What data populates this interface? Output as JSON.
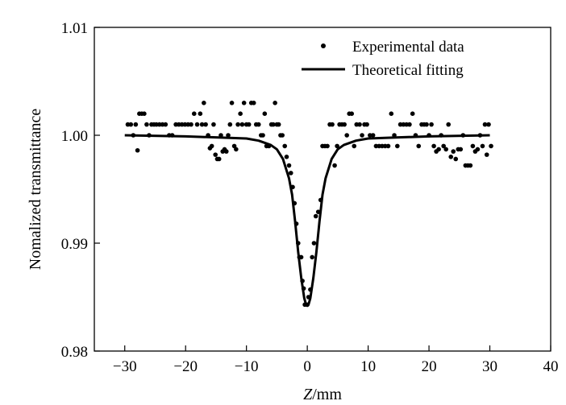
{
  "chart_data": {
    "type": "scatter",
    "xlabel_italic": "Z",
    "xlabel_unit": "/mm",
    "ylabel": "Nomalized transmittance",
    "xlim": [
      -35,
      40
    ],
    "ylim": [
      0.98,
      1.01
    ],
    "x_ticks": [
      -30,
      -20,
      -10,
      0,
      10,
      20,
      30,
      40
    ],
    "x_tick_labels": [
      "−30",
      "−20",
      "−10",
      "0",
      "10",
      "20",
      "30",
      "40"
    ],
    "y_ticks": [
      0.98,
      0.99,
      1.0,
      1.01
    ],
    "y_tick_labels": [
      "0.98",
      "0.99",
      "1.00",
      "1.01"
    ],
    "grid": false,
    "legend_position": "top-right",
    "series": [
      {
        "name": "Experimental data",
        "marker": "dot",
        "color": "#000000",
        "points": [
          [
            -29.5,
            1.001
          ],
          [
            -29.0,
            1.001
          ],
          [
            -28.6,
            1.0
          ],
          [
            -28.2,
            1.001
          ],
          [
            -27.9,
            0.9986
          ],
          [
            -27.6,
            1.002
          ],
          [
            -27.2,
            1.002
          ],
          [
            -26.8,
            1.002
          ],
          [
            -26.4,
            1.001
          ],
          [
            -26.0,
            1.0
          ],
          [
            -25.6,
            1.001
          ],
          [
            -25.2,
            1.001
          ],
          [
            -24.8,
            1.001
          ],
          [
            -24.3,
            1.001
          ],
          [
            -23.8,
            1.001
          ],
          [
            -23.3,
            1.001
          ],
          [
            -22.7,
            1.0
          ],
          [
            -22.2,
            1.0
          ],
          [
            -21.6,
            1.001
          ],
          [
            -21.1,
            1.001
          ],
          [
            -20.6,
            1.001
          ],
          [
            -20.1,
            1.001
          ],
          [
            -19.6,
            1.001
          ],
          [
            -19.1,
            1.001
          ],
          [
            -18.6,
            1.002
          ],
          [
            -18.1,
            1.001
          ],
          [
            -17.6,
            1.002
          ],
          [
            -17.3,
            1.001
          ],
          [
            -17.0,
            1.003
          ],
          [
            -16.7,
            1.001
          ],
          [
            -16.3,
            1.0
          ],
          [
            -16.0,
            0.9988
          ],
          [
            -15.7,
            0.999
          ],
          [
            -15.4,
            1.001
          ],
          [
            -15.1,
            0.9982
          ],
          [
            -14.8,
            0.9978
          ],
          [
            -14.5,
            0.9978
          ],
          [
            -14.2,
            1.0
          ],
          [
            -13.9,
            0.9985
          ],
          [
            -13.6,
            0.9987
          ],
          [
            -13.3,
            0.9985
          ],
          [
            -13.0,
            1.0
          ],
          [
            -12.7,
            1.001
          ],
          [
            -12.4,
            1.003
          ],
          [
            -12.0,
            0.999
          ],
          [
            -11.7,
            0.9987
          ],
          [
            -11.4,
            1.001
          ],
          [
            -11.0,
            1.002
          ],
          [
            -10.7,
            1.001
          ],
          [
            -10.4,
            1.003
          ],
          [
            -10.0,
            1.001
          ],
          [
            -9.6,
            1.001
          ],
          [
            -9.2,
            1.003
          ],
          [
            -8.8,
            1.003
          ],
          [
            -8.4,
            1.001
          ],
          [
            -8.0,
            1.001
          ],
          [
            -7.6,
            1.0
          ],
          [
            -7.3,
            1.0
          ],
          [
            -7.0,
            1.002
          ],
          [
            -6.7,
            0.999
          ],
          [
            -6.3,
            0.999
          ],
          [
            -5.9,
            1.001
          ],
          [
            -5.6,
            1.001
          ],
          [
            -5.3,
            1.003
          ],
          [
            -5.0,
            1.001
          ],
          [
            -4.7,
            1.001
          ],
          [
            -4.4,
            1.0
          ],
          [
            -4.1,
            1.0
          ],
          [
            -3.7,
            0.999
          ],
          [
            -3.4,
            0.998
          ],
          [
            -3.0,
            0.9972
          ],
          [
            -2.7,
            0.9965
          ],
          [
            -2.4,
            0.9952
          ],
          [
            -2.1,
            0.9937
          ],
          [
            -1.8,
            0.9918
          ],
          [
            -1.5,
            0.99
          ],
          [
            -1.3,
            0.9887
          ],
          [
            -1.0,
            0.9887
          ],
          [
            -0.8,
            0.9865
          ],
          [
            -0.6,
            0.9858
          ],
          [
            -0.4,
            0.9843
          ],
          [
            0.0,
            0.9843
          ],
          [
            0.2,
            0.985
          ],
          [
            0.5,
            0.9857
          ],
          [
            0.8,
            0.9887
          ],
          [
            1.1,
            0.99
          ],
          [
            1.4,
            0.9925
          ],
          [
            1.8,
            0.9929
          ],
          [
            2.2,
            0.994
          ],
          [
            2.5,
            0.999
          ],
          [
            2.9,
            0.999
          ],
          [
            3.3,
            0.999
          ],
          [
            3.7,
            1.001
          ],
          [
            4.1,
            1.001
          ],
          [
            4.5,
            0.9972
          ],
          [
            4.9,
            0.999
          ],
          [
            5.3,
            1.001
          ],
          [
            5.7,
            1.001
          ],
          [
            6.1,
            1.001
          ],
          [
            6.5,
            1.0
          ],
          [
            6.9,
            1.002
          ],
          [
            7.3,
            1.002
          ],
          [
            7.7,
            0.999
          ],
          [
            8.1,
            1.001
          ],
          [
            8.6,
            1.001
          ],
          [
            9.0,
            1.0
          ],
          [
            9.4,
            1.001
          ],
          [
            9.8,
            1.001
          ],
          [
            10.3,
            1.0
          ],
          [
            10.8,
            1.0
          ],
          [
            11.3,
            0.999
          ],
          [
            11.8,
            0.999
          ],
          [
            12.3,
            0.999
          ],
          [
            12.8,
            0.999
          ],
          [
            13.3,
            0.999
          ],
          [
            13.8,
            1.002
          ],
          [
            14.3,
            1.0
          ],
          [
            14.8,
            0.999
          ],
          [
            15.3,
            1.001
          ],
          [
            15.8,
            1.001
          ],
          [
            16.3,
            1.001
          ],
          [
            16.8,
            1.001
          ],
          [
            17.3,
            1.002
          ],
          [
            17.8,
            1.0
          ],
          [
            18.3,
            0.999
          ],
          [
            18.8,
            1.001
          ],
          [
            19.2,
            1.001
          ],
          [
            19.6,
            1.001
          ],
          [
            20.0,
            1.0
          ],
          [
            20.4,
            1.001
          ],
          [
            20.8,
            0.999
          ],
          [
            21.2,
            0.9985
          ],
          [
            21.6,
            0.9987
          ],
          [
            22.0,
            1.0
          ],
          [
            22.4,
            0.999
          ],
          [
            22.8,
            0.9987
          ],
          [
            23.2,
            1.001
          ],
          [
            23.6,
            0.998
          ],
          [
            24.0,
            0.9985
          ],
          [
            24.4,
            0.9978
          ],
          [
            24.8,
            0.9987
          ],
          [
            25.2,
            0.9987
          ],
          [
            25.6,
            1.0
          ],
          [
            26.0,
            0.9972
          ],
          [
            26.4,
            0.9972
          ],
          [
            26.8,
            0.9972
          ],
          [
            27.2,
            0.999
          ],
          [
            27.6,
            0.9985
          ],
          [
            28.0,
            0.9987
          ],
          [
            28.4,
            1.0
          ],
          [
            28.8,
            0.999
          ],
          [
            29.2,
            1.001
          ],
          [
            29.5,
            0.9982
          ],
          [
            29.8,
            1.001
          ],
          [
            30.2,
            0.999
          ]
        ]
      },
      {
        "name": "Theoretical fitting",
        "marker": "line",
        "color": "#000000",
        "curve": {
          "x": [
            -30,
            -20,
            -15,
            -10,
            -8,
            -6,
            -5,
            -4,
            -3,
            -2.5,
            -2,
            -1.5,
            -1,
            -0.5,
            -0.2,
            0,
            0.2,
            0.5,
            1,
            1.5,
            2,
            2.5,
            3,
            4,
            5,
            6,
            8,
            10,
            15,
            20,
            30
          ],
          "y": [
            1.0,
            0.9999,
            0.9998,
            0.9997,
            0.9995,
            0.9991,
            0.9987,
            0.9978,
            0.996,
            0.9945,
            0.992,
            0.9892,
            0.9868,
            0.9849,
            0.9843,
            0.9842,
            0.9843,
            0.9849,
            0.9868,
            0.9892,
            0.992,
            0.9945,
            0.996,
            0.9978,
            0.9987,
            0.9991,
            0.9995,
            0.9997,
            0.9998,
            0.9999,
            1.0
          ]
        }
      }
    ]
  }
}
